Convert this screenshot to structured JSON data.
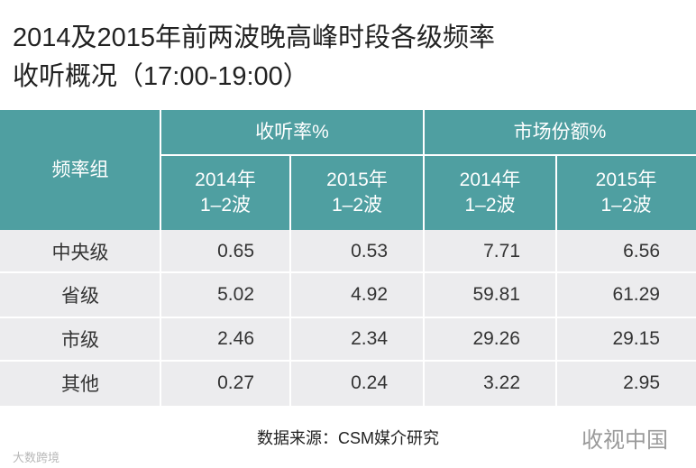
{
  "header": {
    "title_line1": "2014及2015年前两波晚高峰时段各级频率",
    "title_line2": "收听概况（17:00-19:00）"
  },
  "table": {
    "group_header": "频率组",
    "column_groups": [
      "收听率%",
      "市场份额%"
    ],
    "subheaders": [
      {
        "year": "2014年",
        "wave": "1–2波"
      },
      {
        "year": "2015年",
        "wave": "1–2波"
      },
      {
        "year": "2014年",
        "wave": "1–2波"
      },
      {
        "year": "2015年",
        "wave": "1–2波"
      }
    ],
    "rows": [
      [
        "中央级",
        0.65,
        0.53,
        7.71,
        6.56
      ],
      [
        "省级",
        5.02,
        4.92,
        59.81,
        61.29
      ],
      [
        "市级",
        2.46,
        2.34,
        29.26,
        29.15
      ],
      [
        "其他",
        0.27,
        0.24,
        3.22,
        2.95
      ]
    ]
  },
  "footer": {
    "source": "数据来源：CSM媒介研究",
    "watermark_right": "收视中国",
    "watermark_left": "大数跨境"
  }
}
